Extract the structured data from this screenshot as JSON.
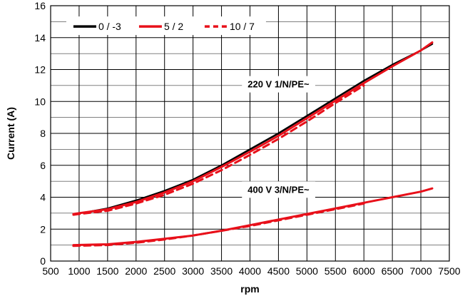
{
  "chart_data": {
    "type": "line",
    "xlabel": "rpm",
    "ylabel": "Current (A)",
    "xlim": [
      500,
      7500
    ],
    "ylim": [
      0,
      16
    ],
    "x_ticks": [
      500,
      1000,
      1500,
      2000,
      2500,
      3000,
      3500,
      4000,
      4500,
      5000,
      5500,
      6000,
      6500,
      7000,
      7500
    ],
    "y_ticks": [
      0,
      2,
      4,
      6,
      8,
      10,
      12,
      14,
      16
    ],
    "grid": true,
    "legend_position": "top-left",
    "annotations": [
      {
        "text": "220 V 1/N/PE~",
        "x": 4500,
        "y": 11.1
      },
      {
        "text": "400 V 3/N/PE~",
        "x": 4500,
        "y": 4.5
      }
    ],
    "series": [
      {
        "name": "0 / -3",
        "color": "#000000",
        "dash": "solid",
        "x": [
          1200,
          1500,
          2000,
          2500,
          3000,
          3500,
          4000,
          4500,
          5000,
          5500,
          6000,
          6500,
          7000,
          7200
        ],
        "y": [
          3.1,
          3.3,
          3.8,
          4.4,
          5.1,
          6.0,
          7.0,
          8.0,
          9.1,
          10.2,
          11.3,
          12.3,
          13.2,
          13.6
        ]
      },
      {
        "name": "5 / 2",
        "color": "#e8101a",
        "dash": "solid",
        "x": [
          900,
          1000,
          1500,
          2000,
          2500,
          3000,
          3500,
          4000,
          4500,
          5000,
          5500,
          6000,
          6500,
          7000,
          7200
        ],
        "y": [
          2.95,
          3.0,
          3.25,
          3.7,
          4.3,
          5.0,
          5.9,
          6.85,
          7.85,
          8.95,
          10.05,
          11.15,
          12.2,
          13.2,
          13.7
        ]
      },
      {
        "name": "10 / 7",
        "color": "#e8101a",
        "dash": "dashed",
        "x": [
          900,
          1000,
          1500,
          2000,
          2500,
          3000,
          3500,
          4000,
          4500,
          5000,
          5500,
          6000
        ],
        "y": [
          2.9,
          2.95,
          3.15,
          3.6,
          4.15,
          4.85,
          5.7,
          6.65,
          7.65,
          8.75,
          9.9,
          11.0
        ]
      },
      {
        "name": "",
        "color": "#e8101a",
        "dash": "solid",
        "x": [
          900,
          1500,
          2000,
          2500,
          3000,
          3500,
          4000,
          4500,
          5000,
          5500,
          6000,
          6500,
          7000,
          7200
        ],
        "y": [
          1.0,
          1.05,
          1.2,
          1.4,
          1.6,
          1.9,
          2.25,
          2.6,
          2.95,
          3.3,
          3.65,
          4.0,
          4.35,
          4.55
        ]
      },
      {
        "name": "",
        "color": "#e8101a",
        "dash": "dashed",
        "x": [
          900,
          1500,
          2000,
          2500,
          3000,
          3500,
          4000,
          4500,
          5000,
          5500,
          6000
        ],
        "y": [
          0.95,
          1.0,
          1.15,
          1.35,
          1.6,
          1.9,
          2.2,
          2.55,
          2.9,
          3.25,
          3.6
        ]
      }
    ]
  }
}
